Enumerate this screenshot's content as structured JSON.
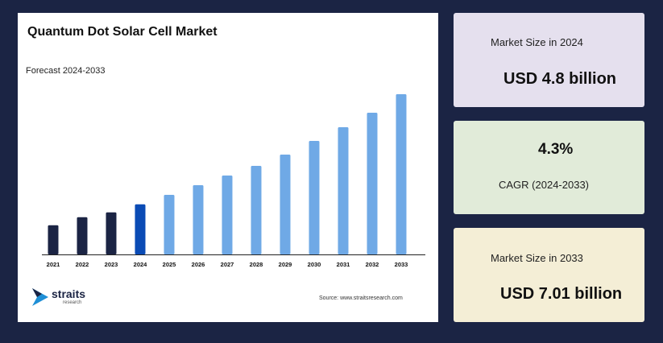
{
  "chart": {
    "title": "Quantum Dot Solar Cell Market",
    "subtitle": "Forecast 2024-2033",
    "source": "Source: www.straitsresearch.com"
  },
  "logo": {
    "name": "straits",
    "sub": "research"
  },
  "cards": [
    {
      "label": "Market Size in 2024",
      "value": "USD 4.8 billion",
      "bg": "#e5e0ee"
    },
    {
      "value": "4.3%",
      "label": "CAGR (2024-2033)",
      "bg": "#e1ebd9"
    },
    {
      "label": "Market Size in 2033",
      "value": "USD 7.01 billion",
      "bg": "#f4eed6"
    }
  ],
  "colors": {
    "historic": "#1b2444",
    "base_year": "#0a4bb5",
    "forecast": "#6fa9e6",
    "background": "#1b2444"
  },
  "chart_data": {
    "type": "bar",
    "title": "Quantum Dot Solar Cell Market",
    "subtitle": "Forecast 2024-2033",
    "categories": [
      "2021",
      "2022",
      "2023",
      "2024",
      "2025",
      "2026",
      "2027",
      "2028",
      "2029",
      "2030",
      "2031",
      "2032",
      "2033"
    ],
    "values": [
      1.81,
      2.31,
      2.61,
      3.11,
      3.7,
      4.3,
      4.9,
      5.5,
      6.2,
      7.05,
      7.9,
      8.8,
      9.95
    ],
    "value_scale": "relative bar height, no value axis printed",
    "ylim": [
      0,
      10
    ],
    "grid": false,
    "legend": "none"
  }
}
